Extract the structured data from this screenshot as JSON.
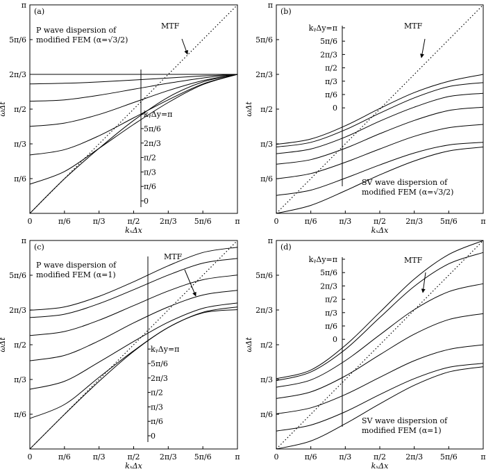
{
  "chart_data": [
    {
      "id": "a",
      "type": "line",
      "panel_label": "(a)",
      "title": "P wave dispersion of modified FEM (α=√3/2)",
      "title_line1": "P wave dispersion of",
      "title_line2": "modified FEM (α=√3/2)",
      "xlabel": "kₓΔx",
      "ylabel": "ωΔt",
      "xlim": [
        0,
        3.1416
      ],
      "ylim": [
        0,
        3.1416
      ],
      "xticks": {
        "values": [
          0,
          0.5236,
          1.0472,
          1.5708,
          2.0944,
          2.618,
          3.1416
        ],
        "labels": [
          "0",
          "π/6",
          "π/3",
          "π/2",
          "2π/3",
          "5π/6",
          "π"
        ]
      },
      "yticks": {
        "values": [
          0.5236,
          1.0472,
          1.5708,
          2.0944,
          2.618,
          3.1416
        ],
        "labels": [
          "π/6",
          "π/3",
          "π/2",
          "2π/3",
          "5π/6",
          "π"
        ]
      },
      "mtf_label": "MTF",
      "legend_position": "lower-right",
      "legend_title": "kᵧΔy=π",
      "legend_entries": [
        "kᵧΔy=π",
        "5π/6",
        "2π/3",
        "π/2",
        "π/3",
        "π/6",
        "0"
      ],
      "series": [
        {
          "name": "kᵧΔy=π",
          "x": [
            0,
            0.5236,
            1.0472,
            1.5708,
            2.0944,
            2.618,
            3.1416
          ],
          "y": [
            2.094,
            2.094,
            2.094,
            2.094,
            2.094,
            2.094,
            2.094
          ]
        },
        {
          "name": "5π/6",
          "x": [
            0,
            0.5236,
            1.0472,
            1.5708,
            2.0944,
            2.618,
            3.1416
          ],
          "y": [
            1.95,
            1.96,
            1.98,
            2.01,
            2.04,
            2.07,
            2.094
          ]
        },
        {
          "name": "2π/3",
          "x": [
            0,
            0.5236,
            1.0472,
            1.5708,
            2.0944,
            2.618,
            3.1416
          ],
          "y": [
            1.69,
            1.71,
            1.78,
            1.87,
            1.96,
            2.04,
            2.094
          ]
        },
        {
          "name": "π/2",
          "x": [
            0,
            0.5236,
            1.0472,
            1.5708,
            2.0944,
            2.618,
            3.1416
          ],
          "y": [
            1.31,
            1.36,
            1.49,
            1.67,
            1.85,
            2.0,
            2.094
          ]
        },
        {
          "name": "π/3",
          "x": [
            0,
            0.5236,
            1.0472,
            1.5708,
            2.0944,
            2.618,
            3.1416
          ],
          "y": [
            0.88,
            0.96,
            1.17,
            1.44,
            1.71,
            1.95,
            2.094
          ]
        },
        {
          "name": "π/6",
          "x": [
            0,
            0.5236,
            1.0472,
            1.5708,
            2.0944,
            2.618,
            3.1416
          ],
          "y": [
            0.44,
            0.63,
            0.98,
            1.34,
            1.67,
            1.94,
            2.094
          ]
        },
        {
          "name": "0",
          "x": [
            0,
            0.5236,
            1.0472,
            1.5708,
            2.0944,
            2.618,
            3.1416
          ],
          "y": [
            0,
            0.52,
            0.98,
            1.4,
            1.75,
            1.98,
            2.094
          ]
        }
      ]
    },
    {
      "id": "b",
      "type": "line",
      "panel_label": "(b)",
      "title": "SV wave dispersion of modified FEM (α=√3/2)",
      "title_line1": "SV wave dispersion of",
      "title_line2": "modified FEM (α=√3/2)",
      "xlabel": "kₓΔx",
      "ylabel": "ωΔt",
      "xlim": [
        0,
        3.1416
      ],
      "ylim": [
        0,
        3.1416
      ],
      "xticks": {
        "values": [
          0,
          0.5236,
          1.0472,
          1.5708,
          2.0944,
          2.618,
          3.1416
        ],
        "labels": [
          "0",
          "π/6",
          "π/3",
          "π/2",
          "2π/3",
          "5π/6",
          "π"
        ]
      },
      "yticks": {
        "values": [
          0.5236,
          1.0472,
          1.5708,
          2.0944,
          2.618,
          3.1416
        ],
        "labels": [
          "π/6",
          "π/3",
          "π/2",
          "2π/3",
          "5π/6",
          "π"
        ]
      },
      "mtf_label": "MTF",
      "legend_position": "upper-left",
      "legend_title": "kᵧΔy=π",
      "legend_entries": [
        "kᵧΔy=π",
        "5π/6",
        "2π/3",
        "π/2",
        "π/3",
        "π/6",
        "0"
      ],
      "series": [
        {
          "name": "kᵧΔy=π",
          "x": [
            0,
            0.5236,
            1.0472,
            1.5708,
            2.0944,
            2.618,
            3.1416
          ],
          "y": [
            1.04,
            1.12,
            1.32,
            1.58,
            1.82,
            1.99,
            2.094
          ]
        },
        {
          "name": "5π/6",
          "x": [
            0,
            0.5236,
            1.0472,
            1.5708,
            2.0944,
            2.618,
            3.1416
          ],
          "y": [
            1.0,
            1.07,
            1.26,
            1.51,
            1.74,
            1.91,
            1.97
          ]
        },
        {
          "name": "2π/3",
          "x": [
            0,
            0.5236,
            1.0472,
            1.5708,
            2.0944,
            2.618,
            3.1416
          ],
          "y": [
            0.9,
            0.97,
            1.15,
            1.39,
            1.6,
            1.76,
            1.81
          ]
        },
        {
          "name": "π/2",
          "x": [
            0,
            0.5236,
            1.0472,
            1.5708,
            2.0944,
            2.618,
            3.1416
          ],
          "y": [
            0.74,
            0.81,
            0.98,
            1.2,
            1.4,
            1.55,
            1.6
          ]
        },
        {
          "name": "π/3",
          "x": [
            0,
            0.5236,
            1.0472,
            1.5708,
            2.0944,
            2.618,
            3.1416
          ],
          "y": [
            0.52,
            0.6,
            0.77,
            0.97,
            1.16,
            1.29,
            1.34
          ]
        },
        {
          "name": "π/6",
          "x": [
            0,
            0.5236,
            1.0472,
            1.5708,
            2.0944,
            2.618,
            3.1416
          ],
          "y": [
            0.27,
            0.35,
            0.53,
            0.73,
            0.91,
            1.03,
            1.07
          ]
        },
        {
          "name": "0",
          "x": [
            0,
            0.5236,
            1.0472,
            1.5708,
            2.0944,
            2.618,
            3.1416
          ],
          "y": [
            0,
            0.12,
            0.34,
            0.58,
            0.79,
            0.94,
            1.0
          ]
        }
      ]
    },
    {
      "id": "c",
      "type": "line",
      "panel_label": "(c)",
      "title": "P wave dispersion of modified FEM (α=1)",
      "title_line1": "P wave dispersion of",
      "title_line2": "modified FEM (α=1)",
      "xlabel": "kₓΔx",
      "ylabel": "ωΔt",
      "xlim": [
        0,
        3.1416
      ],
      "ylim": [
        0,
        3.1416
      ],
      "xticks": {
        "values": [
          0,
          0.5236,
          1.0472,
          1.5708,
          2.0944,
          2.618,
          3.1416
        ],
        "labels": [
          "0",
          "π/6",
          "π/3",
          "π/2",
          "2π/3",
          "5π/6",
          "π"
        ]
      },
      "yticks": {
        "values": [
          0.5236,
          1.0472,
          1.5708,
          2.0944,
          2.618,
          3.1416
        ],
        "labels": [
          "π/6",
          "π/3",
          "π/2",
          "2π/3",
          "5π/6",
          "π"
        ]
      },
      "mtf_label": "MTF",
      "legend_position": "lower-right",
      "legend_title": "kᵧΔy=π",
      "legend_entries": [
        "kᵧΔy=π",
        "5π/6",
        "2π/3",
        "π/2",
        "π/3",
        "π/6",
        "0"
      ],
      "series": [
        {
          "name": "kᵧΔy=π",
          "x": [
            0,
            0.5236,
            1.0472,
            1.5708,
            2.0944,
            2.618,
            3.1416
          ],
          "y": [
            2.09,
            2.14,
            2.3,
            2.52,
            2.76,
            2.96,
            3.04
          ]
        },
        {
          "name": "5π/6",
          "x": [
            0,
            0.5236,
            1.0472,
            1.5708,
            2.0944,
            2.618,
            3.1416
          ],
          "y": [
            1.98,
            2.03,
            2.19,
            2.4,
            2.62,
            2.8,
            2.87
          ]
        },
        {
          "name": "2π/3",
          "x": [
            0,
            0.5236,
            1.0472,
            1.5708,
            2.0944,
            2.618,
            3.1416
          ],
          "y": [
            1.71,
            1.77,
            1.94,
            2.16,
            2.38,
            2.55,
            2.62
          ]
        },
        {
          "name": "π/2",
          "x": [
            0,
            0.5236,
            1.0472,
            1.5708,
            2.0944,
            2.618,
            3.1416
          ],
          "y": [
            1.33,
            1.41,
            1.63,
            1.9,
            2.14,
            2.32,
            2.39
          ]
        },
        {
          "name": "π/3",
          "x": [
            0,
            0.5236,
            1.0472,
            1.5708,
            2.0944,
            2.618,
            3.1416
          ],
          "y": [
            0.9,
            1.02,
            1.31,
            1.62,
            1.91,
            2.12,
            2.2
          ]
        },
        {
          "name": "π/6",
          "x": [
            0,
            0.5236,
            1.0472,
            1.5708,
            2.0944,
            2.618,
            3.1416
          ],
          "y": [
            0.46,
            0.67,
            1.08,
            1.48,
            1.83,
            2.06,
            2.14
          ]
        },
        {
          "name": "0",
          "x": [
            0,
            0.5236,
            1.0472,
            1.5708,
            2.0944,
            2.618,
            3.1416
          ],
          "y": [
            0,
            0.52,
            1.02,
            1.47,
            1.83,
            2.05,
            2.1
          ]
        }
      ]
    },
    {
      "id": "d",
      "type": "line",
      "panel_label": "(d)",
      "title": "SV wave dispersion of modified FEM (α=1)",
      "title_line1": "SV wave dispersion of",
      "title_line2": "modified FEM (α=1)",
      "xlabel": "kₓΔx",
      "ylabel": "ωΔt",
      "xlim": [
        0,
        3.1416
      ],
      "ylim": [
        0,
        3.1416
      ],
      "xticks": {
        "values": [
          0,
          0.5236,
          1.0472,
          1.5708,
          2.0944,
          2.618,
          3.1416
        ],
        "labels": [
          "0",
          "π/6",
          "π/3",
          "π/2",
          "2π/3",
          "5π/6",
          "π"
        ]
      },
      "yticks": {
        "values": [
          0.5236,
          1.0472,
          1.5708,
          2.0944,
          2.618,
          3.1416
        ],
        "labels": [
          "π/6",
          "π/3",
          "π/2",
          "2π/3",
          "5π/6",
          "π"
        ]
      },
      "mtf_label": "MTF",
      "legend_position": "upper-left",
      "legend_title": "kᵧΔy=π",
      "legend_entries": [
        "kᵧΔy=π",
        "5π/6",
        "2π/3",
        "π/2",
        "π/3",
        "π/6",
        "0"
      ],
      "series": [
        {
          "name": "kᵧΔy=π",
          "x": [
            0,
            0.5236,
            1.0472,
            1.5708,
            2.0944,
            2.618,
            3.1416
          ],
          "y": [
            1.06,
            1.19,
            1.56,
            2.06,
            2.56,
            2.93,
            3.14
          ]
        },
        {
          "name": "5π/6",
          "x": [
            0,
            0.5236,
            1.0472,
            1.5708,
            2.0944,
            2.618,
            3.1416
          ],
          "y": [
            1.03,
            1.16,
            1.5,
            1.98,
            2.45,
            2.79,
            2.96
          ]
        },
        {
          "name": "2π/3",
          "x": [
            0,
            0.5236,
            1.0472,
            1.5708,
            2.0944,
            2.618,
            3.1416
          ],
          "y": [
            0.93,
            1.04,
            1.33,
            1.72,
            2.1,
            2.37,
            2.49
          ]
        },
        {
          "name": "π/2",
          "x": [
            0,
            0.5236,
            1.0472,
            1.5708,
            2.0944,
            2.618,
            3.1416
          ],
          "y": [
            0.76,
            0.86,
            1.1,
            1.42,
            1.73,
            1.95,
            2.04
          ]
        },
        {
          "name": "π/3",
          "x": [
            0,
            0.5236,
            1.0472,
            1.5708,
            2.0944,
            2.618,
            3.1416
          ],
          "y": [
            0.53,
            0.62,
            0.82,
            1.08,
            1.33,
            1.5,
            1.57
          ]
        },
        {
          "name": "π/6",
          "x": [
            0,
            0.5236,
            1.0472,
            1.5708,
            2.0944,
            2.618,
            3.1416
          ],
          "y": [
            0.27,
            0.36,
            0.56,
            0.82,
            1.06,
            1.23,
            1.29
          ]
        },
        {
          "name": "0",
          "x": [
            0,
            0.5236,
            1.0472,
            1.5708,
            2.0944,
            2.618,
            3.1416
          ],
          "y": [
            0,
            0.12,
            0.38,
            0.68,
            0.96,
            1.16,
            1.24
          ]
        }
      ]
    }
  ]
}
